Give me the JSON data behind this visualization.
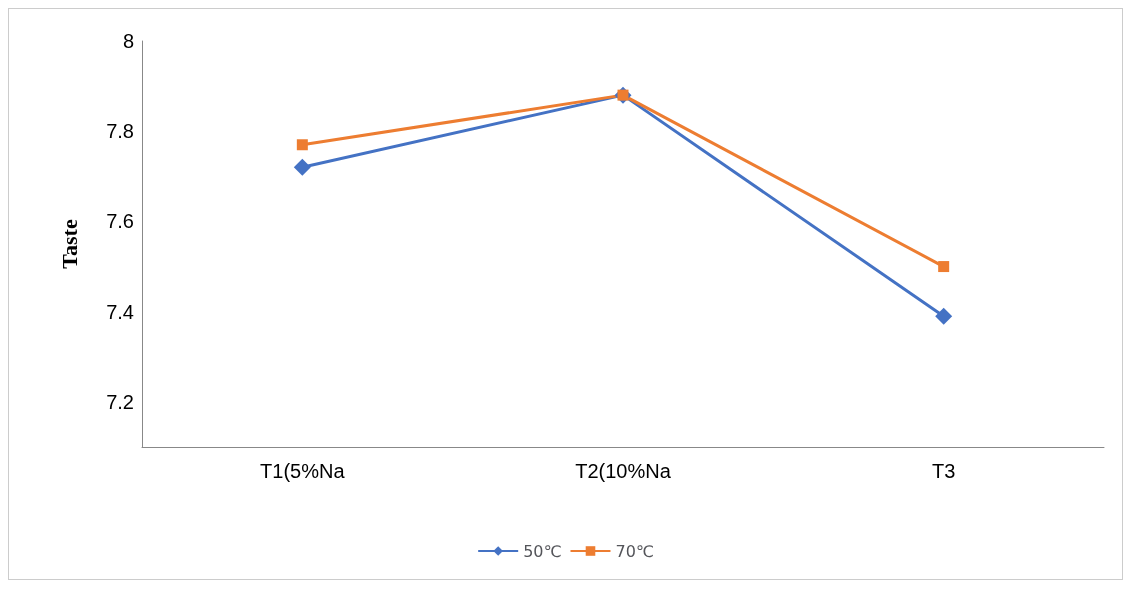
{
  "chart_data": {
    "type": "line",
    "ylabel": "Taste",
    "categories": [
      "T1(5%Na",
      "T2(10%Na",
      "T3"
    ],
    "series": [
      {
        "name": "50℃",
        "color": "#4472c4",
        "marker": "diamond",
        "values": [
          7.72,
          7.88,
          7.39
        ]
      },
      {
        "name": "70℃",
        "color": "#ed7d31",
        "marker": "square",
        "values": [
          7.77,
          7.88,
          7.5
        ]
      }
    ],
    "ylim": [
      7.1,
      8
    ],
    "yticks": [
      7.2,
      7.4,
      7.6,
      7.8,
      8
    ],
    "grid": false,
    "legend": "bottom"
  }
}
